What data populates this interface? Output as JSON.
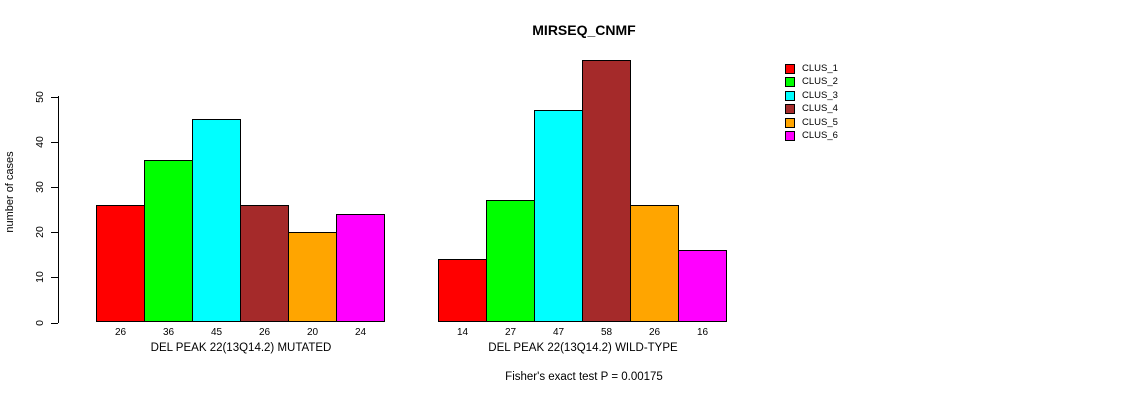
{
  "chart_data": {
    "type": "bar",
    "title": "MIRSEQ_CNMF",
    "ylabel": "number of cases",
    "xlabel": "",
    "ylim": [
      0,
      58
    ],
    "yticks": [
      0,
      10,
      20,
      30,
      40,
      50
    ],
    "grid": false,
    "legend_position": "right",
    "series": [
      {
        "name": "CLUS_1",
        "color": "#ff0000"
      },
      {
        "name": "CLUS_2",
        "color": "#00ff00"
      },
      {
        "name": "CLUS_3",
        "color": "#00ffff"
      },
      {
        "name": "CLUS_4",
        "color": "#a52a2a"
      },
      {
        "name": "CLUS_5",
        "color": "#ffa500"
      },
      {
        "name": "CLUS_6",
        "color": "#ff00ff"
      }
    ],
    "groups": [
      {
        "label": "DEL PEAK 22(13Q14.2) MUTATED",
        "values": [
          26,
          36,
          45,
          26,
          20,
          24
        ]
      },
      {
        "label": "DEL PEAK 22(13Q14.2) WILD-TYPE",
        "values": [
          14,
          27,
          47,
          58,
          26,
          16
        ]
      }
    ],
    "annotation": "Fisher's exact test P = 0.00175"
  }
}
